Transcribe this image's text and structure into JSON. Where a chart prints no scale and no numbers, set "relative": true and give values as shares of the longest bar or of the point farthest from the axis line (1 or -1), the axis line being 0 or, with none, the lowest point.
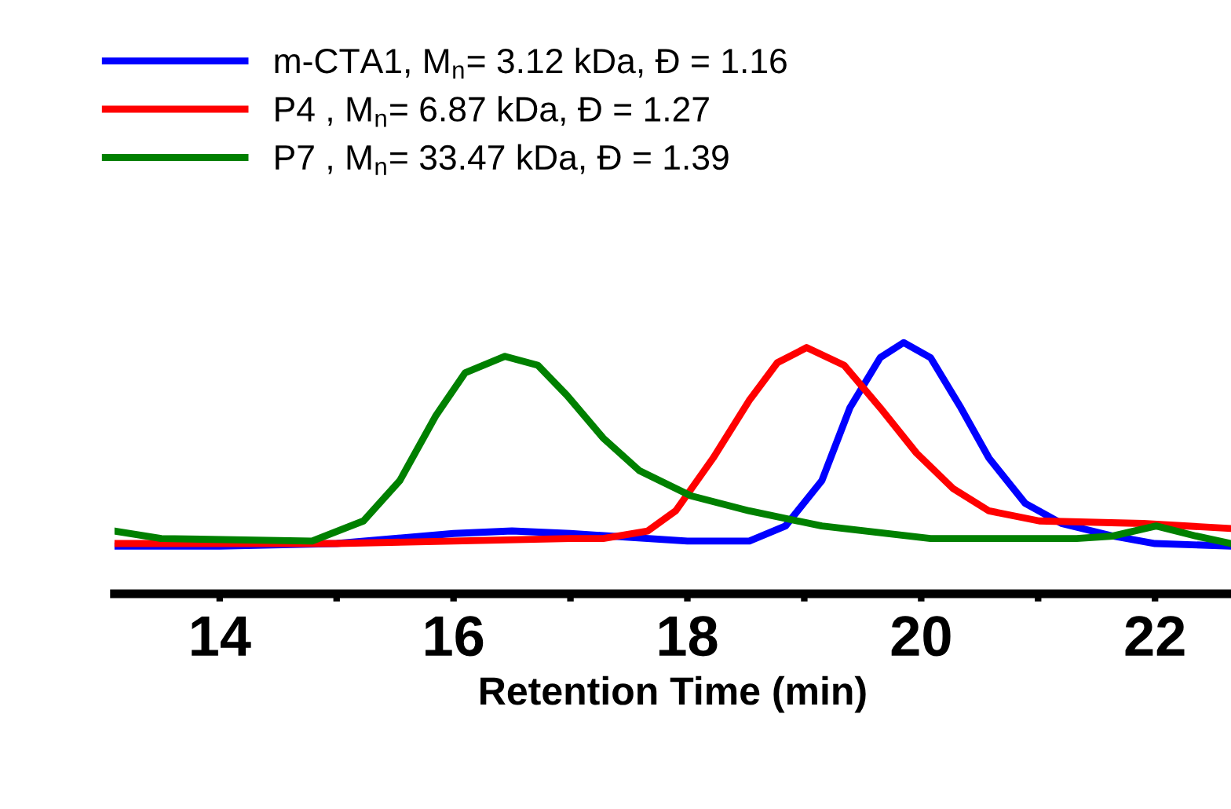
{
  "chart_data": {
    "type": "line",
    "relative": true,
    "xlabel": "Retention Time (min)",
    "xlim": [
      13.1,
      22.65
    ],
    "xticks": [
      14,
      {
        "value": 15,
        "label": null
      },
      16,
      {
        "value": 17,
        "label": null
      },
      18,
      {
        "value": 19,
        "label": null
      },
      20,
      {
        "value": 21,
        "label": null
      },
      22
    ],
    "legend": "top left",
    "grid": false,
    "marker": "none",
    "line_style": "solid",
    "tick_labels": "x",
    "series": [
      {
        "name": "m-CTA1, M$_{n}$= 3.12 kDa, Đ = 1.16",
        "color": "#0000ff",
        "x": [
          13.1,
          14.0,
          15.0,
          16.0,
          16.5,
          17.0,
          18.0,
          18.53,
          18.84,
          19.15,
          19.39,
          19.65,
          19.85,
          20.08,
          20.34,
          20.58,
          20.89,
          21.2,
          21.64,
          22.0,
          22.65
        ],
        "values": [
          0.19,
          0.19,
          0.2,
          0.24,
          0.25,
          0.24,
          0.21,
          0.21,
          0.27,
          0.45,
          0.74,
          0.94,
          1,
          0.94,
          0.74,
          0.54,
          0.36,
          0.28,
          0.23,
          0.2,
          0.19
        ]
      },
      {
        "name": "P4 , M$_{n}$= 6.87 kDa, Đ = 1.27",
        "color": "#ff0000",
        "x": [
          13.1,
          14.0,
          15.0,
          16.0,
          17.0,
          17.28,
          17.66,
          17.9,
          18.22,
          18.53,
          18.77,
          19.02,
          19.34,
          19.65,
          19.96,
          20.27,
          20.58,
          21.01,
          21.9,
          22.65
        ],
        "values": [
          0.2,
          0.2,
          0.2,
          0.21,
          0.22,
          0.22,
          0.25,
          0.33,
          0.54,
          0.77,
          0.92,
          0.98,
          0.91,
          0.74,
          0.56,
          0.42,
          0.33,
          0.29,
          0.28,
          0.26
        ]
      },
      {
        "name": "P7 , M$_{n}$= 33.47 kDa, Đ = 1.39",
        "color": "#008000",
        "x": [
          13.1,
          13.5,
          14.79,
          15.23,
          15.54,
          15.85,
          16.1,
          16.44,
          16.72,
          16.97,
          17.28,
          17.59,
          18.03,
          18.53,
          19.15,
          20.08,
          21.33,
          21.64,
          22.01,
          22.35,
          22.65
        ],
        "values": [
          0.25,
          0.22,
          0.21,
          0.29,
          0.45,
          0.71,
          0.88,
          0.945,
          0.91,
          0.79,
          0.62,
          0.49,
          0.39,
          0.33,
          0.27,
          0.22,
          0.22,
          0.23,
          0.27,
          0.23,
          0.2
        ]
      }
    ]
  }
}
